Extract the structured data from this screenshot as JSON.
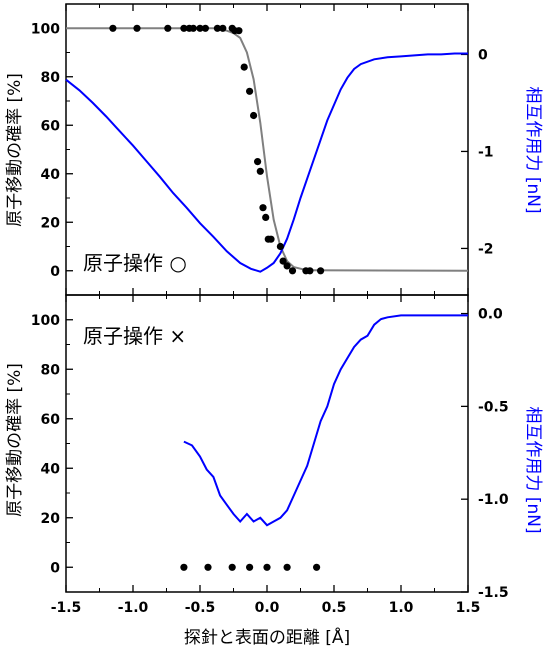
{
  "chart_data": [
    {
      "type": "scatter",
      "panel": "top",
      "annotation": "原子操作 ○",
      "xlabel": "",
      "ylabel": "原子移動の確率 [%]",
      "y2label": "相互作用力 [nN]",
      "xlim": [
        -1.5,
        1.5
      ],
      "ylim": [
        -10,
        110
      ],
      "y2lim": [
        -2.48,
        0.52
      ],
      "xticks": [],
      "yticks": [
        0,
        20,
        40,
        60,
        80,
        100
      ],
      "y2ticks": [
        0,
        -1,
        -2
      ],
      "y2ticklabels": [
        "0",
        "-1",
        "-2"
      ],
      "colors": {
        "points": "#000000",
        "fit": "#808080",
        "force": "#0000ff"
      },
      "series": [
        {
          "role": "probability-points",
          "axis": "left",
          "x": [
            -1.15,
            -0.97,
            -0.74,
            -0.62,
            -0.58,
            -0.55,
            -0.5,
            -0.46,
            -0.37,
            -0.33,
            -0.26,
            -0.24,
            -0.21,
            -0.17,
            -0.13,
            -0.1,
            -0.07,
            -0.05,
            -0.03,
            -0.01,
            0.01,
            0.03,
            0.1,
            0.12,
            0.15,
            0.19,
            0.29,
            0.32,
            0.4
          ],
          "y": [
            100,
            100,
            100,
            100,
            100,
            100,
            100,
            100,
            100,
            100,
            100,
            99,
            99,
            84,
            74,
            64,
            45,
            41,
            26,
            22,
            13,
            13,
            10,
            4,
            2,
            0,
            0,
            0,
            0
          ]
        },
        {
          "role": "probability-fit",
          "axis": "left",
          "x": [
            -1.5,
            -0.4,
            -0.3,
            -0.25,
            -0.2,
            -0.15,
            -0.1,
            -0.05,
            0.0,
            0.05,
            0.1,
            0.15,
            0.2,
            0.3,
            1.5
          ],
          "y": [
            100,
            100,
            99,
            98,
            96,
            90,
            79,
            61,
            39,
            21,
            10,
            4,
            1.5,
            0.2,
            0
          ]
        },
        {
          "role": "force-curve",
          "axis": "right",
          "x": [
            -1.5,
            -1.4,
            -1.3,
            -1.2,
            -1.1,
            -1.0,
            -0.9,
            -0.8,
            -0.7,
            -0.6,
            -0.5,
            -0.4,
            -0.3,
            -0.2,
            -0.12,
            -0.05,
            0.0,
            0.05,
            0.1,
            0.15,
            0.2,
            0.25,
            0.3,
            0.35,
            0.4,
            0.45,
            0.5,
            0.55,
            0.6,
            0.65,
            0.7,
            0.8,
            0.9,
            1.0,
            1.1,
            1.2,
            1.3,
            1.4,
            1.5
          ],
          "y": [
            -0.26,
            -0.37,
            -0.5,
            -0.64,
            -0.79,
            -0.94,
            -1.1,
            -1.26,
            -1.43,
            -1.58,
            -1.74,
            -1.88,
            -2.03,
            -2.15,
            -2.21,
            -2.24,
            -2.2,
            -2.15,
            -2.05,
            -1.9,
            -1.7,
            -1.48,
            -1.28,
            -1.08,
            -0.88,
            -0.68,
            -0.52,
            -0.36,
            -0.24,
            -0.15,
            -0.1,
            -0.05,
            -0.03,
            -0.02,
            -0.01,
            0.0,
            0.0,
            0.01,
            0.01
          ]
        }
      ]
    },
    {
      "type": "scatter",
      "panel": "bottom",
      "annotation": "原子操作 ×",
      "xlabel": "探針と表面の距離 [Å]",
      "ylabel": "原子移動の確率 [%]",
      "y2label": "相互作用力 [nN]",
      "xlim": [
        -1.5,
        1.5
      ],
      "ylim": [
        -10,
        110
      ],
      "y2lim": [
        -1.5,
        0.1
      ],
      "xticks": [
        -1.5,
        -1.0,
        -0.5,
        0.0,
        0.5,
        1.0,
        1.5
      ],
      "xticklabels": [
        "-1.5",
        "-1.0",
        "-0.5",
        "0.0",
        "0.5",
        "1.0",
        "1.5"
      ],
      "yticks": [
        0,
        20,
        40,
        60,
        80,
        100
      ],
      "y2ticks": [
        0,
        -0.5,
        -1.0,
        -1.5
      ],
      "y2ticklabels": [
        "0.0",
        "-0.5",
        "-1.0",
        "-1.5"
      ],
      "colors": {
        "points": "#000000",
        "force": "#0000ff"
      },
      "series": [
        {
          "role": "probability-points",
          "axis": "left",
          "x": [
            -0.62,
            -0.44,
            -0.26,
            -0.13,
            0.0,
            0.15,
            0.37
          ],
          "y": [
            0,
            0,
            0,
            0,
            0,
            0,
            0
          ]
        },
        {
          "role": "force-curve",
          "axis": "right",
          "x": [
            -0.62,
            -0.56,
            -0.5,
            -0.45,
            -0.4,
            -0.35,
            -0.3,
            -0.25,
            -0.2,
            -0.15,
            -0.1,
            -0.05,
            0.0,
            0.05,
            0.1,
            0.15,
            0.2,
            0.25,
            0.3,
            0.35,
            0.4,
            0.45,
            0.5,
            0.55,
            0.6,
            0.65,
            0.7,
            0.75,
            0.8,
            0.85,
            0.9,
            1.0,
            1.1,
            1.2,
            1.3,
            1.4,
            1.5
          ],
          "y": [
            -0.69,
            -0.71,
            -0.77,
            -0.84,
            -0.88,
            -0.98,
            -1.03,
            -1.08,
            -1.12,
            -1.08,
            -1.12,
            -1.1,
            -1.14,
            -1.12,
            -1.1,
            -1.06,
            -0.98,
            -0.9,
            -0.82,
            -0.7,
            -0.58,
            -0.5,
            -0.38,
            -0.3,
            -0.24,
            -0.18,
            -0.14,
            -0.12,
            -0.06,
            -0.03,
            -0.02,
            -0.01,
            -0.01,
            -0.01,
            -0.01,
            -0.01,
            -0.01
          ]
        }
      ]
    }
  ]
}
